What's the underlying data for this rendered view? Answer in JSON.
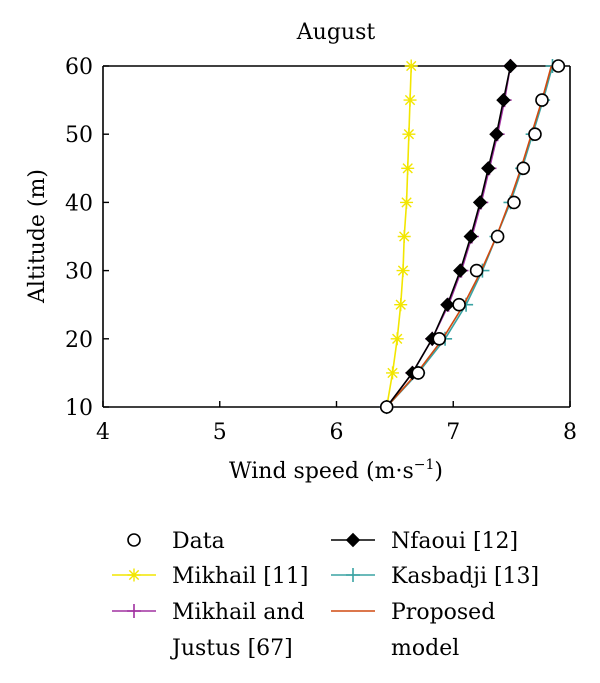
{
  "chart_data": {
    "type": "line",
    "title": "August",
    "xlabel": "Wind speed (m·s",
    "xlabel_sup": "−1",
    "xlabel_suffix": ")",
    "ylabel": "Altitude (m)",
    "xlim": [
      4,
      8
    ],
    "ylim": [
      10,
      60
    ],
    "xticks": [
      4,
      5,
      6,
      7,
      8
    ],
    "yticks": [
      10,
      20,
      30,
      40,
      50,
      60
    ],
    "grid": false,
    "legend_position": "bottom",
    "series": [
      {
        "name": "Data",
        "color": "#000000",
        "marker": "circle",
        "line": false,
        "points": [
          [
            6.43,
            10
          ],
          [
            6.7,
            15
          ],
          [
            6.88,
            20
          ],
          [
            7.05,
            25
          ],
          [
            7.2,
            30
          ],
          [
            7.38,
            35
          ],
          [
            7.52,
            40
          ],
          [
            7.6,
            45
          ],
          [
            7.7,
            50
          ],
          [
            7.76,
            55
          ],
          [
            7.9,
            60
          ]
        ]
      },
      {
        "name": "Mikhail [11]",
        "color": "#f2e600",
        "marker": "asterisk",
        "line": true,
        "points": [
          [
            6.43,
            10
          ],
          [
            6.48,
            15
          ],
          [
            6.52,
            20
          ],
          [
            6.55,
            25
          ],
          [
            6.57,
            30
          ],
          [
            6.58,
            35
          ],
          [
            6.6,
            40
          ],
          [
            6.61,
            45
          ],
          [
            6.62,
            50
          ],
          [
            6.63,
            55
          ],
          [
            6.64,
            60
          ]
        ]
      },
      {
        "name": "Mikhail and",
        "name_line2": "Justus [67]",
        "color": "#a030a0",
        "marker": "plus",
        "line": true,
        "points": [
          [
            6.43,
            10
          ],
          [
            6.65,
            15
          ],
          [
            6.82,
            20
          ],
          [
            6.96,
            25
          ],
          [
            7.07,
            30
          ],
          [
            7.16,
            35
          ],
          [
            7.24,
            40
          ],
          [
            7.31,
            45
          ],
          [
            7.38,
            50
          ],
          [
            7.44,
            55
          ],
          [
            7.49,
            60
          ]
        ]
      },
      {
        "name": "Nfaoui [12]",
        "color": "#000000",
        "marker": "diamond",
        "line": true,
        "points": [
          [
            6.43,
            10
          ],
          [
            6.65,
            15
          ],
          [
            6.82,
            20
          ],
          [
            6.95,
            25
          ],
          [
            7.06,
            30
          ],
          [
            7.15,
            35
          ],
          [
            7.23,
            40
          ],
          [
            7.3,
            45
          ],
          [
            7.37,
            50
          ],
          [
            7.43,
            55
          ],
          [
            7.49,
            60
          ]
        ]
      },
      {
        "name": "Kasbadji [13]",
        "color": "#3aa3a3",
        "marker": "plus",
        "line": true,
        "points": [
          [
            6.43,
            10
          ],
          [
            6.7,
            15
          ],
          [
            6.93,
            20
          ],
          [
            7.11,
            25
          ],
          [
            7.25,
            30
          ],
          [
            7.37,
            35
          ],
          [
            7.49,
            40
          ],
          [
            7.59,
            45
          ],
          [
            7.68,
            50
          ],
          [
            7.77,
            55
          ],
          [
            7.85,
            60
          ]
        ]
      },
      {
        "name": "Proposed",
        "name_line2": "model",
        "color": "#d04a10",
        "marker": "none",
        "line": true,
        "points": [
          [
            6.43,
            10
          ],
          [
            6.69,
            15
          ],
          [
            6.91,
            20
          ],
          [
            7.09,
            25
          ],
          [
            7.24,
            30
          ],
          [
            7.37,
            35
          ],
          [
            7.48,
            40
          ],
          [
            7.58,
            45
          ],
          [
            7.67,
            50
          ],
          [
            7.76,
            55
          ],
          [
            7.84,
            60
          ]
        ]
      }
    ]
  }
}
